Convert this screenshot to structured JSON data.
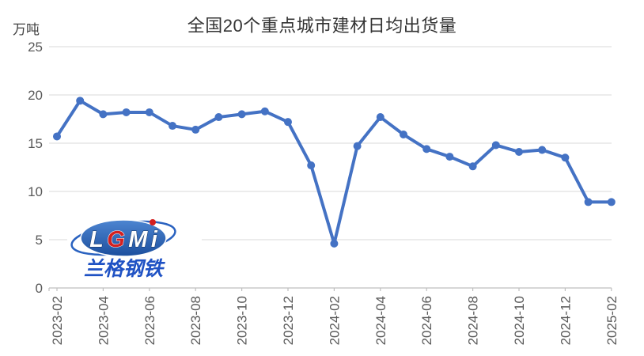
{
  "chart_data": {
    "type": "line",
    "title": "全国20个重点城市建材日均出货量",
    "ylabel": "万吨",
    "xlabel": "",
    "ylim": [
      0,
      25
    ],
    "yticks": [
      0,
      5,
      10,
      15,
      20,
      25
    ],
    "grid": true,
    "legend": "none",
    "x_tick_label_every": 2,
    "categories": [
      "2023-02",
      "2023-03",
      "2023-04",
      "2023-05",
      "2023-06",
      "2023-07",
      "2023-08",
      "2023-09",
      "2023-10",
      "2023-11",
      "2023-12",
      "2024-01",
      "2024-02",
      "2024-03",
      "2024-04",
      "2024-05",
      "2024-06",
      "2024-07",
      "2024-08",
      "2024-09",
      "2024-10",
      "2024-11",
      "2024-12",
      "2025-01",
      "2025-02"
    ],
    "values": [
      15.7,
      19.4,
      18.0,
      18.2,
      18.2,
      16.8,
      16.4,
      17.7,
      18.0,
      18.3,
      17.2,
      12.7,
      4.6,
      14.7,
      17.7,
      15.9,
      14.4,
      13.6,
      12.6,
      14.8,
      14.1,
      14.3,
      13.5,
      8.9,
      8.9
    ]
  },
  "logo": {
    "l1": "L",
    "l2": "G",
    "l3": "M",
    "l4": "i",
    "subtext": "兰格钢铁"
  },
  "colors": {
    "line": "#4472C4",
    "grid": "#D9D9D9",
    "axis": "#BFBFBF",
    "tick_label": "#595959",
    "title": "#333333",
    "logo_ellipse_top": "#4d85d1",
    "logo_ellipse_bottom": "#1c4f9e",
    "logo_orbit": "#2a62c0",
    "logo_letter_fill": "#ffffff",
    "logo_letter_stroke": "#12305e",
    "logo_accent_red": "#d42020",
    "logo_cn_blue": "#1f52c4"
  }
}
